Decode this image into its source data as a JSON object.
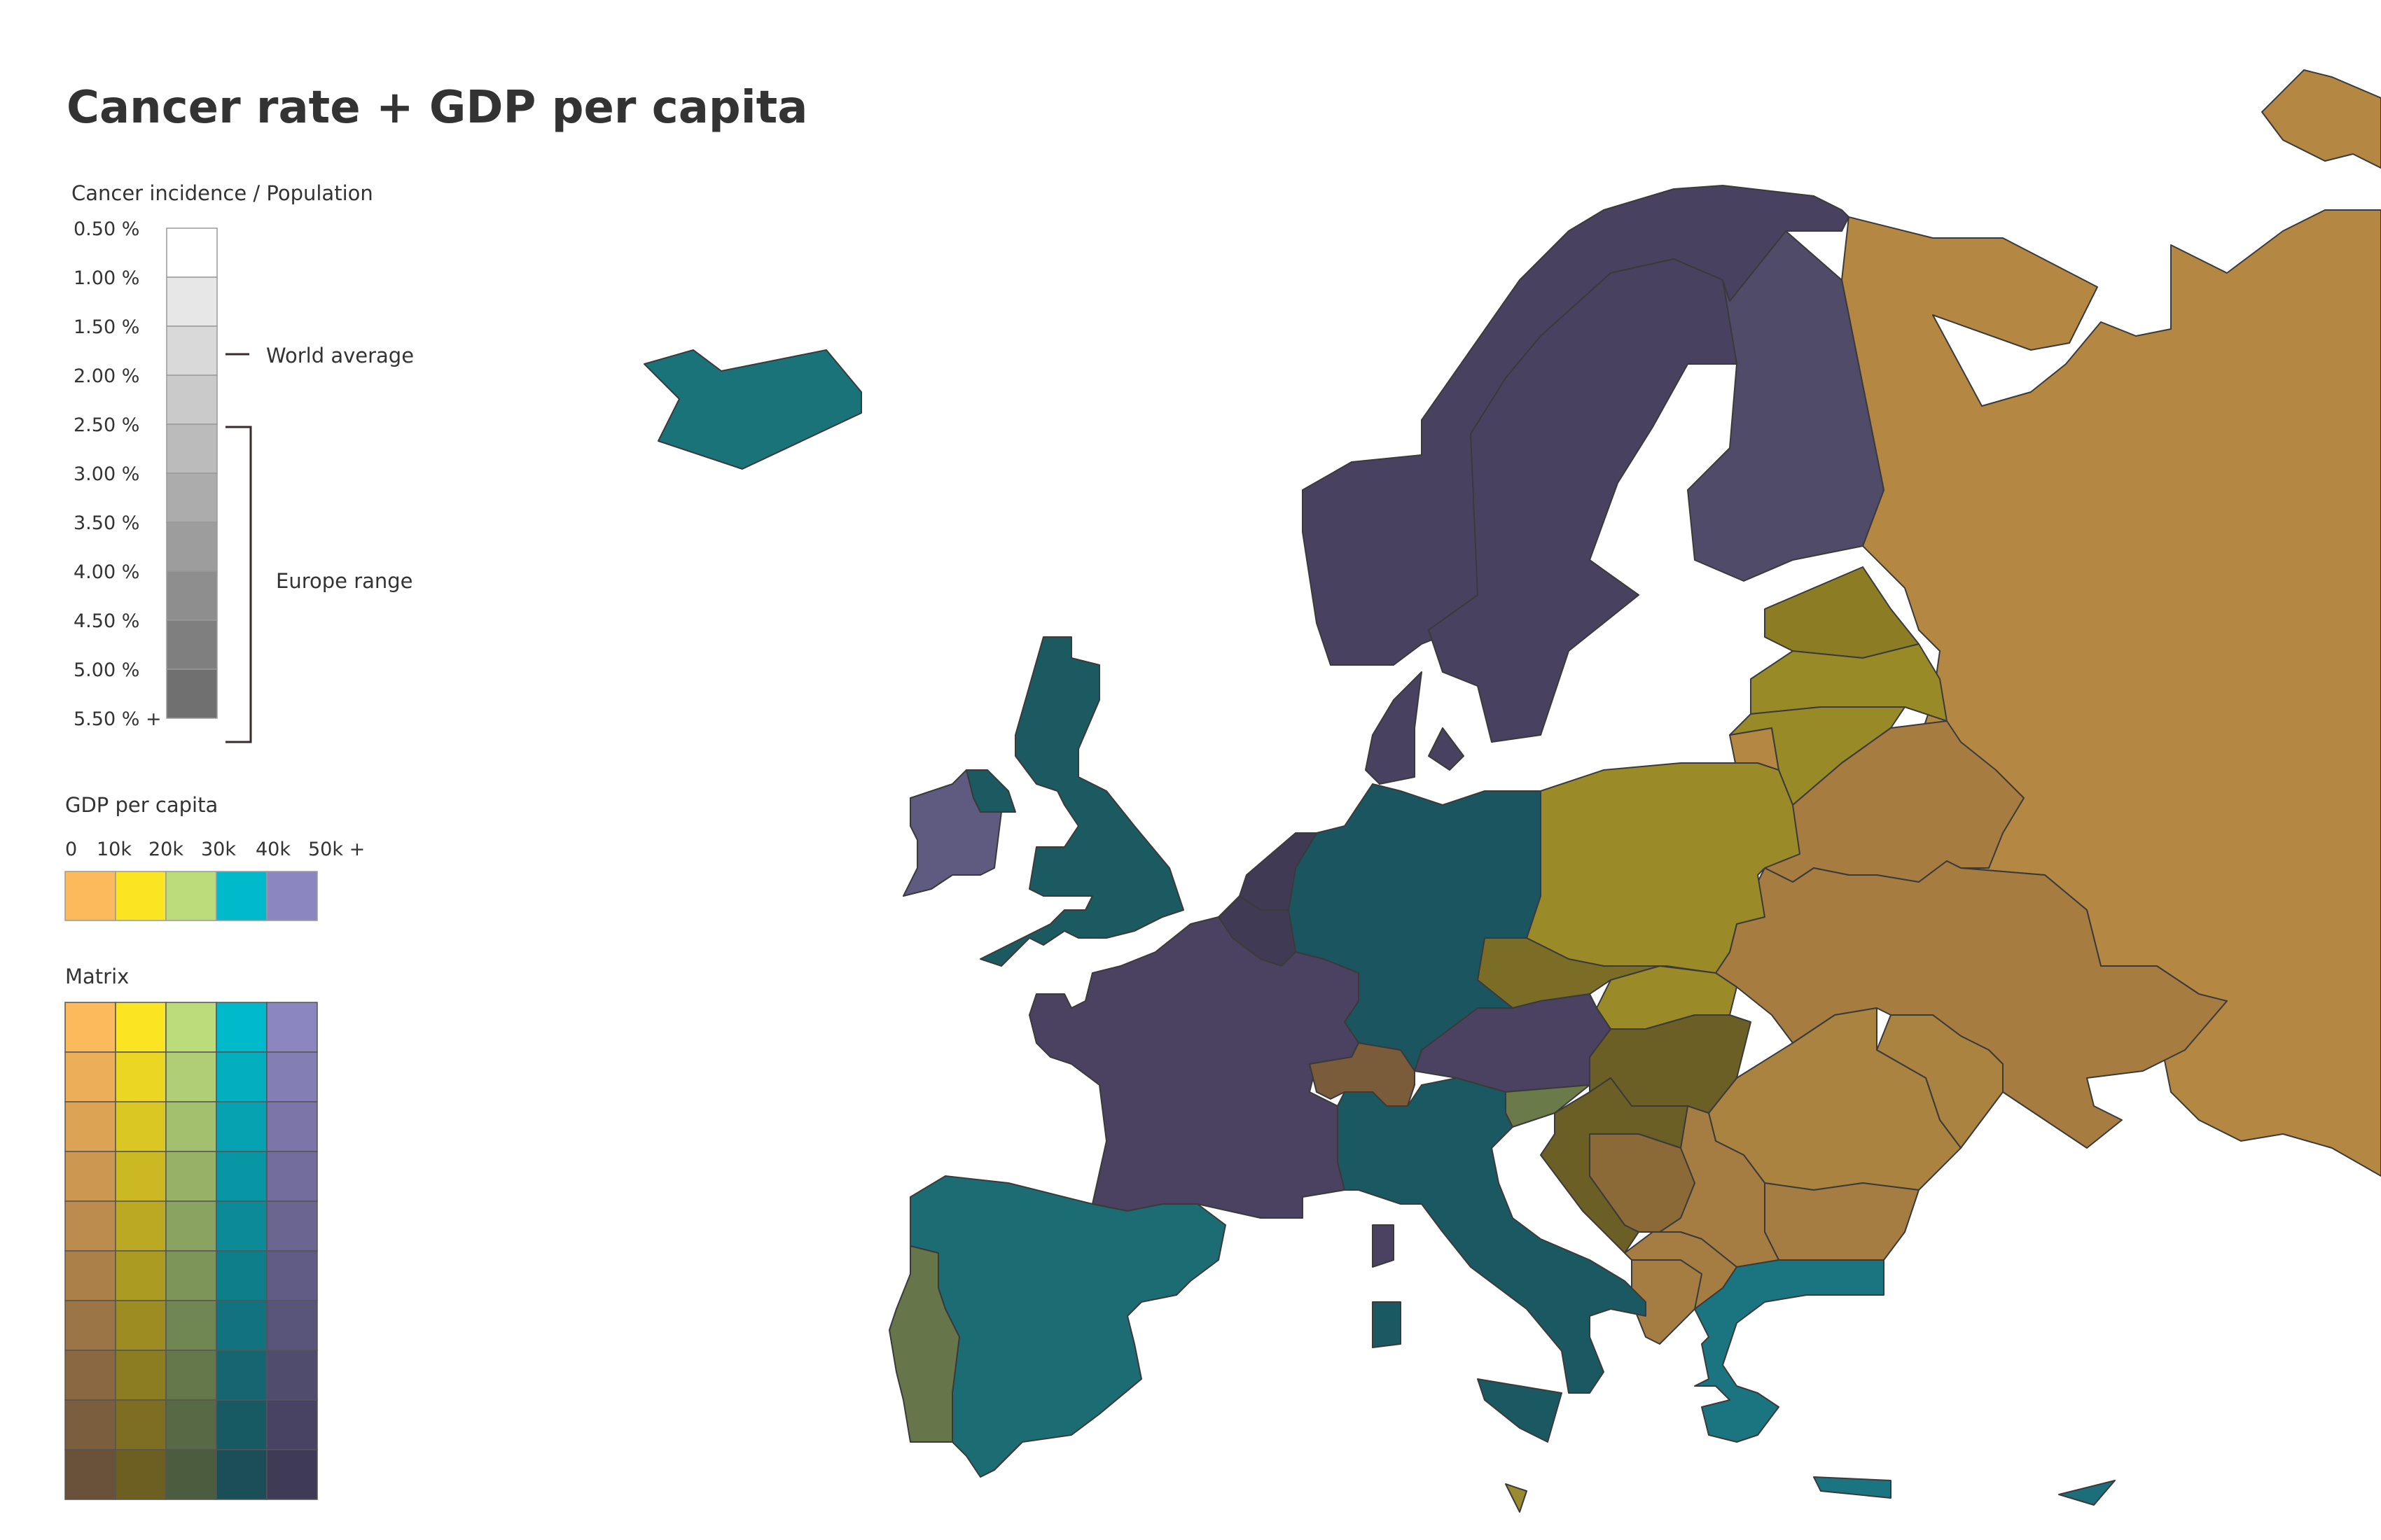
{
  "title": "Cancer rate + GDP per capita",
  "cancer_legend": {
    "label": "Cancer incidence / Population",
    "ticks": [
      "0.50 %",
      "1.00 %",
      "1.50 %",
      "2.00 %",
      "2.50 %",
      "3.00 %",
      "3.50 %",
      "4.00 %",
      "4.50 %",
      "5.00 %",
      "5.50 % +"
    ],
    "greys": [
      "#ffffff",
      "#e7e7e7",
      "#d9d9d9",
      "#cacaca",
      "#bbbbbb",
      "#acacac",
      "#9d9d9d",
      "#8e8e8e",
      "#7f7f7f",
      "#707070"
    ],
    "world_average_label": "World average",
    "world_average_value": "1.70 %",
    "europe_range_label": "Europe range",
    "europe_range_values": [
      "2.50 %",
      "5.50 % +"
    ]
  },
  "gdp_legend": {
    "label": "GDP per capita",
    "ticks": [
      "0",
      "10k",
      "20k",
      "30k",
      "40k",
      "50k +"
    ],
    "colors": [
      "#fcba5c",
      "#fbe523",
      "#bcdc7c",
      "#00bacb",
      "#8c86c0"
    ]
  },
  "matrix": {
    "label": "Matrix",
    "columns_hue": [
      "#fcba5c",
      "#fbe523",
      "#bcdc7c",
      "#00bacb",
      "#8c86c0"
    ],
    "rows_dark": [
      "#6a523a",
      "#6d5f22",
      "#4c5c3e",
      "#1b4e57",
      "#3f3b56"
    ]
  },
  "map": {
    "colors": {
      "russia": "#b48843",
      "belarus": "#a67c40",
      "ukraine": "#a67c40",
      "moldova_romania": "#a9833f",
      "bulgaria": "#a57d42",
      "baltic": "#8c7c24",
      "lithuania": "#998a28",
      "poland": "#9a8a28",
      "czech_slovakia": "#7b6d26",
      "hungary": "#6b5f25",
      "croatia_bosnia": "#8c6a38",
      "slovenia": "#6a7a48",
      "nordic": "#484260",
      "finland": "#514b6a",
      "france": "#4a4260",
      "benelux": "#403a55",
      "germany": "#1b5560",
      "uk": "#1b5a60",
      "ireland": "#5f5a80",
      "iceland": "#1b737a",
      "iberia": "#1b6d73",
      "portugal": "#67764a",
      "italy": "#1b5962",
      "switzerland": "#7a5b3a",
      "austria": "#4a4260",
      "greece": "#1b7580",
      "sicily_cyprus": "#1b6e7a",
      "malta": "#9a8a30"
    }
  }
}
